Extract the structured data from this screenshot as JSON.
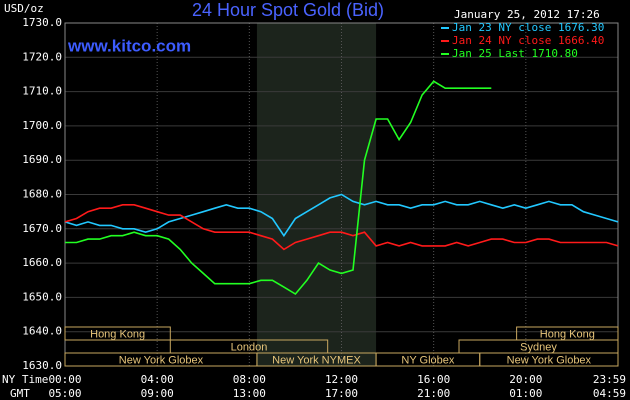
{
  "chart_data": {
    "type": "line",
    "title": "24 Hour Spot Gold (Bid)",
    "timestamp": "January 25, 2012 17:26",
    "watermark": "www.kitco.com",
    "ylabel": "USD/oz",
    "xlabel": "NY Time",
    "x2label": "GMT",
    "xlim": [
      0,
      24
    ],
    "xticks": [
      {
        "value": 0,
        "label": "00:00"
      },
      {
        "value": 4,
        "label": "04:00"
      },
      {
        "value": 8,
        "label": "08:00"
      },
      {
        "value": 12,
        "label": "12:00"
      },
      {
        "value": 16,
        "label": "16:00"
      },
      {
        "value": 20,
        "label": "20:00"
      },
      {
        "value": 24,
        "label": "23:59"
      }
    ],
    "x2ticklabels": [
      "05:00",
      "09:00",
      "13:00",
      "17:00",
      "21:00",
      "01:00",
      "04:59"
    ],
    "ylim": [
      1630,
      1730
    ],
    "yticks": [
      {
        "value": 1630,
        "label": "1630.0"
      },
      {
        "value": 1640,
        "label": "1640.0"
      },
      {
        "value": 1650,
        "label": "1650.0"
      },
      {
        "value": 1660,
        "label": "1660.0"
      },
      {
        "value": 1670,
        "label": "1670.0"
      },
      {
        "value": 1680,
        "label": "1680.0"
      },
      {
        "value": 1690,
        "label": "1690.0"
      },
      {
        "value": 1700,
        "label": "1700.0"
      },
      {
        "value": 1710,
        "label": "1710.0"
      },
      {
        "value": 1720,
        "label": "1720.0"
      },
      {
        "value": 1730,
        "label": "1730.0"
      }
    ],
    "grid": true,
    "legend": "top-right",
    "x": [
      0,
      0.5,
      1,
      1.5,
      2,
      2.5,
      3,
      3.5,
      4,
      4.5,
      5,
      5.5,
      6,
      6.5,
      7,
      7.5,
      8,
      8.5,
      9,
      9.5,
      10,
      10.5,
      11,
      11.5,
      12,
      12.5,
      13,
      13.5,
      14,
      14.5,
      15,
      15.5,
      16,
      16.5,
      17,
      17.5,
      18,
      18.5,
      19,
      19.5,
      20,
      20.5,
      21,
      21.5,
      22,
      22.5,
      23,
      23.5,
      24
    ],
    "series": [
      {
        "name": "Jan 23 NY close 1676.30",
        "color": "#22c8ff",
        "values": [
          1672,
          1671,
          1672,
          1671,
          1671,
          1670,
          1670,
          1669,
          1670,
          1672,
          1673,
          1674,
          1675,
          1676,
          1677,
          1676,
          1676,
          1675,
          1673,
          1668,
          1673,
          1675,
          1677,
          1679,
          1680,
          1678,
          1677,
          1678,
          1677,
          1677,
          1676,
          1677,
          1677,
          1678,
          1677,
          1677,
          1678,
          1677,
          1676,
          1677,
          1676,
          1677,
          1678,
          1677,
          1677,
          1675,
          1674,
          1673,
          1672
        ]
      },
      {
        "name": "Jan 24 NY close 1666.40",
        "color": "#ff1a1a",
        "values": [
          1672,
          1673,
          1675,
          1676,
          1676,
          1677,
          1677,
          1676,
          1675,
          1674,
          1674,
          1672,
          1670,
          1669,
          1669,
          1669,
          1669,
          1668,
          1667,
          1664,
          1666,
          1667,
          1668,
          1669,
          1669,
          1668,
          1669,
          1665,
          1666,
          1665,
          1666,
          1665,
          1665,
          1665,
          1666,
          1665,
          1666,
          1667,
          1667,
          1666,
          1666,
          1667,
          1667,
          1666,
          1666,
          1666,
          1666,
          1666,
          1665
        ]
      },
      {
        "name": "Jan 25 Last 1710.80",
        "color": "#22ff22",
        "values": [
          1666,
          1666,
          1667,
          1667,
          1668,
          1668,
          1669,
          1668,
          1668,
          1667,
          1664,
          1660,
          1657,
          1654,
          1654,
          1654,
          1654,
          1655,
          1655,
          1653,
          1651,
          1655,
          1660,
          1658,
          1657,
          1658,
          1690,
          1702,
          1702,
          1696,
          1701,
          1709,
          1713,
          1711,
          1711,
          1711,
          1711,
          1711,
          null,
          null,
          null,
          null,
          null,
          null,
          null,
          null,
          null,
          null,
          null
        ]
      }
    ],
    "sessions": [
      [
        {
          "name": "Hong Kong",
          "start": 0,
          "end": 4.57
        },
        {
          "name": "Hong Kong",
          "start": 19.6,
          "end": 24
        }
      ],
      [
        {
          "name": "London",
          "start": 4.57,
          "end": 11.4
        },
        {
          "name": "Sydney",
          "start": 17.1,
          "end": 24
        }
      ],
      [
        {
          "name": "New York Globex",
          "start": 0,
          "end": 8.33
        },
        {
          "name": "New York NYMEX",
          "start": 8.33,
          "end": 13.5
        },
        {
          "name": "NY Globex",
          "start": 13.5,
          "end": 18
        },
        {
          "name": "New York Globex",
          "start": 18,
          "end": 24
        }
      ]
    ]
  }
}
